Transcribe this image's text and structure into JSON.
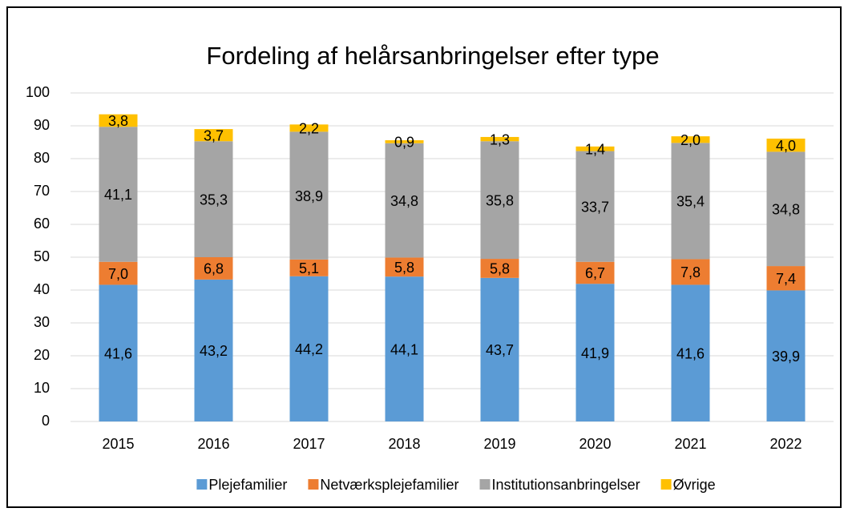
{
  "chart_data": {
    "type": "stacked_bar",
    "title": "Fordeling af helårsanbringelser efter type",
    "categories": [
      "2015",
      "2016",
      "2017",
      "2018",
      "2019",
      "2020",
      "2021",
      "2022"
    ],
    "series": [
      {
        "name": "Plejefamilier",
        "color": "#5b9bd5",
        "values": [
          41.6,
          43.2,
          44.2,
          44.1,
          43.7,
          41.9,
          41.6,
          39.9
        ],
        "value_labels": [
          "41,6",
          "43,2",
          "44,2",
          "44,1",
          "43,7",
          "41,9",
          "41,6",
          "39,9"
        ]
      },
      {
        "name": "Netværksplejefamilier",
        "color": "#ed7d31",
        "values": [
          7.0,
          6.8,
          5.1,
          5.8,
          5.8,
          6.7,
          7.8,
          7.4
        ],
        "value_labels": [
          "7,0",
          "6,8",
          "5,1",
          "5,8",
          "5,8",
          "6,7",
          "7,8",
          "7,4"
        ]
      },
      {
        "name": "Institutionsanbringelser",
        "color": "#a5a5a5",
        "values": [
          41.1,
          35.3,
          38.9,
          34.8,
          35.8,
          33.7,
          35.4,
          34.8
        ],
        "value_labels": [
          "41,1",
          "35,3",
          "38,9",
          "34,8",
          "35,8",
          "33,7",
          "35,4",
          "34,8"
        ]
      },
      {
        "name": "Øvrige",
        "color": "#ffc000",
        "values": [
          3.8,
          3.7,
          2.2,
          0.9,
          1.3,
          1.4,
          2.0,
          4.0
        ],
        "value_labels": [
          "3,8",
          "3,7",
          "2,2",
          "0,9",
          "1,3",
          "1,4",
          "2,0",
          "4,0"
        ]
      }
    ],
    "ylim": [
      0,
      100
    ],
    "yticks": [
      0,
      10,
      20,
      30,
      40,
      50,
      60,
      70,
      80,
      90,
      100
    ],
    "grid": true,
    "legend": "bottom"
  }
}
